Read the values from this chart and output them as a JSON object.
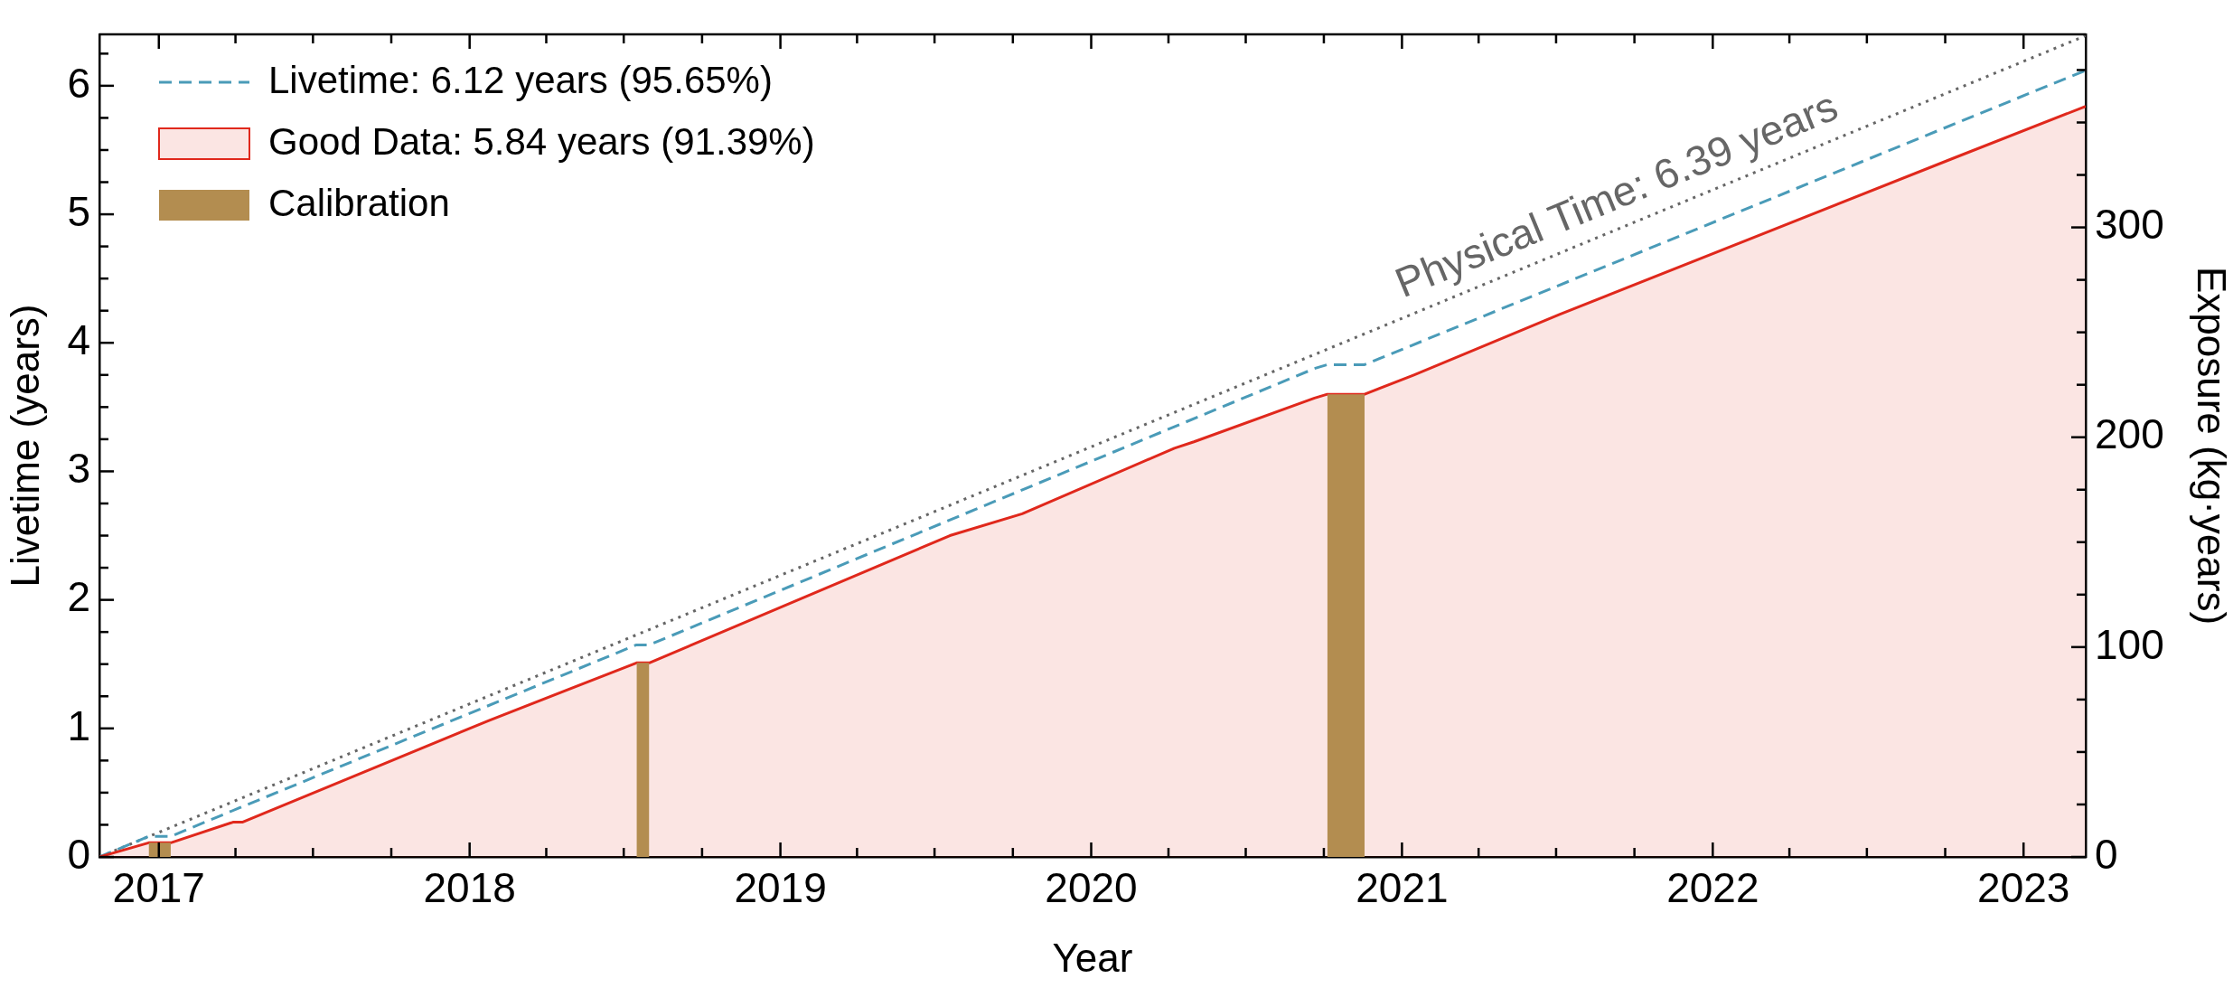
{
  "chart_data": {
    "type": "line",
    "xlabel": "Year",
    "ylabel": "Livetime (years)",
    "y2label": "Exposure (kg·years)",
    "annotations": [
      "Physical Time: 6.39 years"
    ],
    "xlim": [
      "2016-10-23",
      "2023-03-15"
    ],
    "xticks": [
      {
        "value": "2017-01-01",
        "label": "2017"
      },
      {
        "value": "2017-04-01",
        "label": null
      },
      {
        "value": "2017-07-01",
        "label": null
      },
      {
        "value": "2017-10-01",
        "label": null
      },
      {
        "value": "2018-01-01",
        "label": "2018"
      },
      {
        "value": "2018-04-01",
        "label": null
      },
      {
        "value": "2018-07-01",
        "label": null
      },
      {
        "value": "2018-10-01",
        "label": null
      },
      {
        "value": "2019-01-01",
        "label": "2019"
      },
      {
        "value": "2019-04-01",
        "label": null
      },
      {
        "value": "2019-07-01",
        "label": null
      },
      {
        "value": "2019-10-01",
        "label": null
      },
      {
        "value": "2020-01-01",
        "label": "2020"
      },
      {
        "value": "2020-04-01",
        "label": null
      },
      {
        "value": "2020-07-01",
        "label": null
      },
      {
        "value": "2020-10-01",
        "label": null
      },
      {
        "value": "2021-01-01",
        "label": "2021"
      },
      {
        "value": "2021-04-01",
        "label": null
      },
      {
        "value": "2021-07-01",
        "label": null
      },
      {
        "value": "2021-10-01",
        "label": null
      },
      {
        "value": "2022-01-01",
        "label": "2022"
      },
      {
        "value": "2022-04-01",
        "label": null
      },
      {
        "value": "2022-07-01",
        "label": null
      },
      {
        "value": "2022-10-01",
        "label": null
      },
      {
        "value": "2023-01-01",
        "label": "2023"
      }
    ],
    "ylim": [
      0,
      6.4
    ],
    "yticks": [
      0,
      {
        "value": 0.25,
        "label": null
      },
      {
        "value": 0.5,
        "label": null
      },
      {
        "value": 0.75,
        "label": null
      },
      1,
      {
        "value": 1.25,
        "label": null
      },
      {
        "value": 1.5,
        "label": null
      },
      {
        "value": 1.75,
        "label": null
      },
      2,
      {
        "value": 2.25,
        "label": null
      },
      {
        "value": 2.5,
        "label": null
      },
      {
        "value": 2.75,
        "label": null
      },
      3,
      {
        "value": 3.25,
        "label": null
      },
      {
        "value": 3.5,
        "label": null
      },
      {
        "value": 3.75,
        "label": null
      },
      4,
      {
        "value": 4.25,
        "label": null
      },
      {
        "value": 4.5,
        "label": null
      },
      {
        "value": 4.75,
        "label": null
      },
      5,
      {
        "value": 5.25,
        "label": null
      },
      {
        "value": 5.5,
        "label": null
      },
      {
        "value": 5.75,
        "label": null
      },
      6,
      {
        "value": 6.25,
        "label": null
      }
    ],
    "y2lim": [
      0,
      392
    ],
    "y2ticks": [
      0,
      {
        "value": 25,
        "label": null
      },
      {
        "value": 50,
        "label": null
      },
      {
        "value": 75,
        "label": null
      },
      100,
      {
        "value": 125,
        "label": null
      },
      {
        "value": 150,
        "label": null
      },
      {
        "value": 175,
        "label": null
      },
      200,
      {
        "value": 225,
        "label": null
      },
      {
        "value": 250,
        "label": null
      },
      {
        "value": 275,
        "label": null
      },
      300,
      {
        "value": 325,
        "label": null
      },
      {
        "value": 350,
        "label": null
      },
      {
        "value": 375,
        "label": null
      }
    ],
    "grid": false,
    "legend": "top left",
    "marker": "none",
    "series": [
      {
        "color": "#666666",
        "line_style": "dotted",
        "x": [
          "2016-10-23",
          "2023-03-15"
        ],
        "values": [
          0,
          6.39
        ]
      },
      {
        "name": "Livetime: 6.12 years (95.65%)",
        "color": "#4a9bb8",
        "line_style": "dashed",
        "x": [
          "2016-10-23",
          "2016-12-20",
          "2017-01-15",
          "2017-04-05",
          "2018-07-16",
          "2018-07-31",
          "2020-09-20",
          "2020-10-05",
          "2020-11-18",
          "2023-03-15"
        ],
        "values": [
          0,
          0.16,
          0.16,
          0.38,
          1.65,
          1.65,
          3.8,
          3.83,
          3.83,
          6.12
        ]
      },
      {
        "type": "area",
        "name": "Good Data: 5.84 years (91.39%)",
        "color": "#e0281c",
        "line_style": "solid",
        "x": [
          "2016-10-23",
          "2016-12-20",
          "2017-01-15",
          "2017-03-29",
          "2017-04-09",
          "2018-01-23",
          "2018-07-16",
          "2018-07-31",
          "2019-07-19",
          "2019-10-12",
          "2020-04-08",
          "2020-05-01",
          "2020-09-20",
          "2020-10-05",
          "2020-11-18",
          "2021-01-15",
          "2021-07-05",
          "2022-10-12",
          "2023-03-15"
        ],
        "values": [
          0,
          0.11,
          0.11,
          0.27,
          0.27,
          1.06,
          1.51,
          1.51,
          2.5,
          2.67,
          3.18,
          3.23,
          3.57,
          3.6,
          3.6,
          3.75,
          4.22,
          5.44,
          5.84
        ]
      },
      {
        "type": "area",
        "name": "Calibration",
        "color": "#b38d50",
        "x": [
          "2016-12-20",
          "2017-01-15",
          "2017-01-16",
          "2018-07-16",
          "2018-07-31",
          "2018-08-01",
          "2020-10-05",
          "2020-11-18"
        ],
        "values": [
          0.11,
          0.11,
          null,
          1.51,
          1.51,
          null,
          3.6,
          3.6
        ]
      }
    ]
  }
}
